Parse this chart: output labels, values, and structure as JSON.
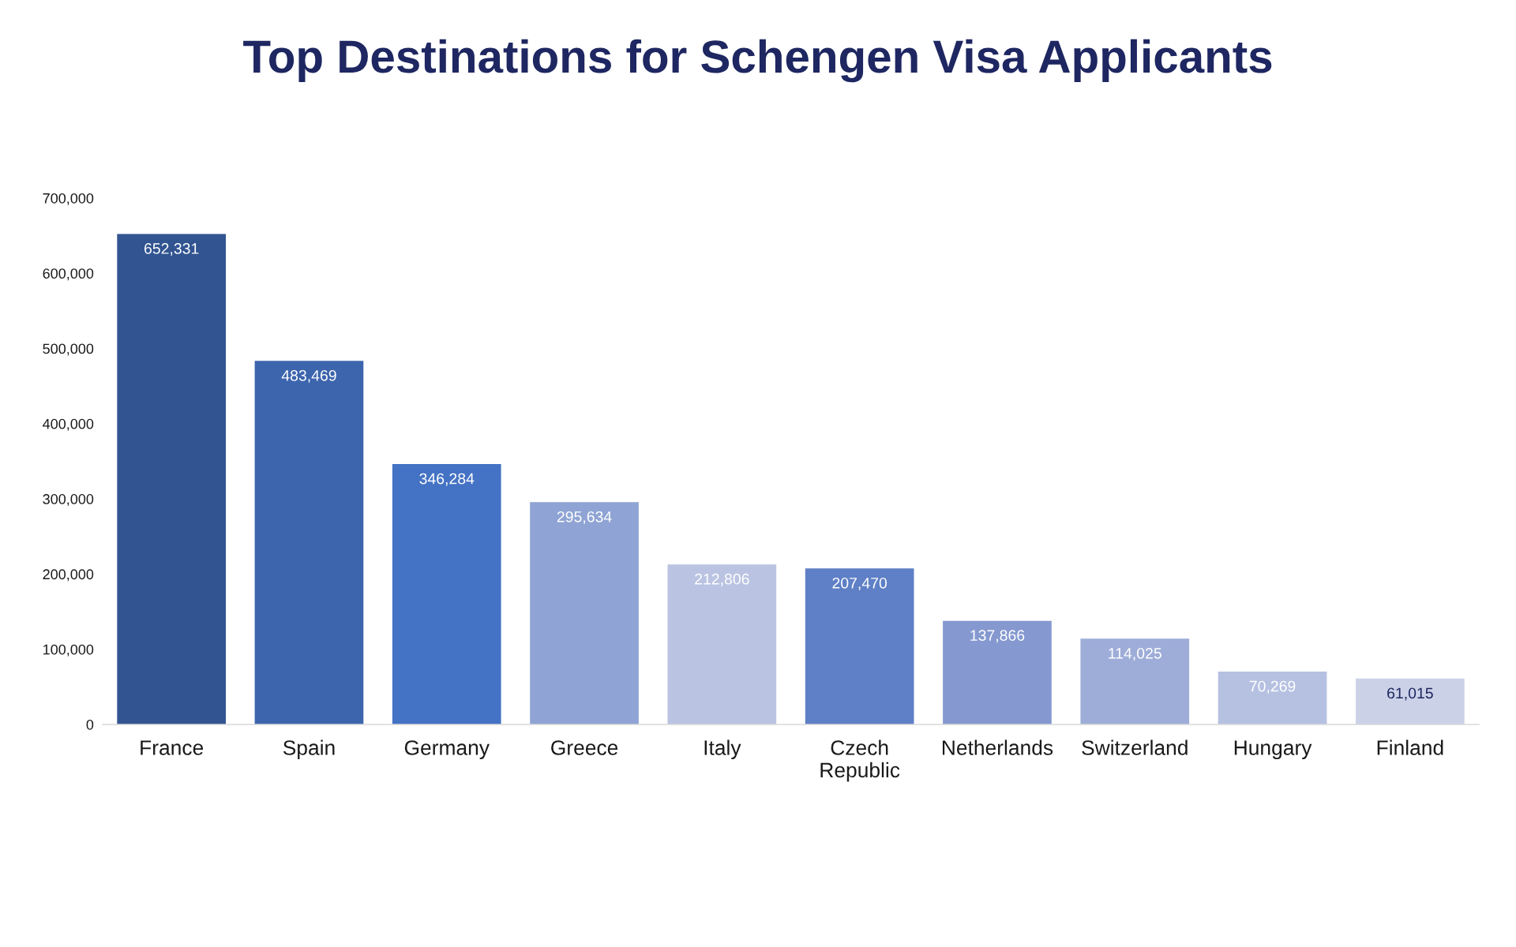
{
  "chart_data": {
    "type": "bar",
    "title": "Top Destinations for Schengen Visa Applicants",
    "categories": [
      "France",
      "Spain",
      "Germany",
      "Greece",
      "Italy",
      "Czech Republic",
      "Netherlands",
      "Switzerland",
      "Hungary",
      "Finland"
    ],
    "values": [
      652331,
      483469,
      346284,
      295634,
      212806,
      207470,
      137866,
      114025,
      70269,
      61015
    ],
    "value_labels": [
      "652,331",
      "483,469",
      "346,284",
      "295,634",
      "212,806",
      "207,470",
      "137,866",
      "114,025",
      "70,269",
      "61,015"
    ],
    "colors": [
      "#325591",
      "#3d65ae",
      "#4472c4",
      "#8fa4d4",
      "#bac4e2",
      "#5f80c6",
      "#8599d0",
      "#9eadd8",
      "#b6c1e2",
      "#cbd2e8"
    ],
    "ylim": [
      0,
      700000
    ],
    "yticks": [
      0,
      {
        "value": 100000,
        "label": "100,000"
      },
      {
        "value": 200000,
        "label": "200,000"
      },
      {
        "value": 300000,
        "label": "300,000"
      },
      {
        "value": 400000,
        "label": "400,000"
      },
      {
        "value": 500000,
        "label": "500,000"
      },
      {
        "value": 600000,
        "label": "600,000"
      },
      {
        "value": 700000,
        "label": "700,000"
      }
    ]
  }
}
